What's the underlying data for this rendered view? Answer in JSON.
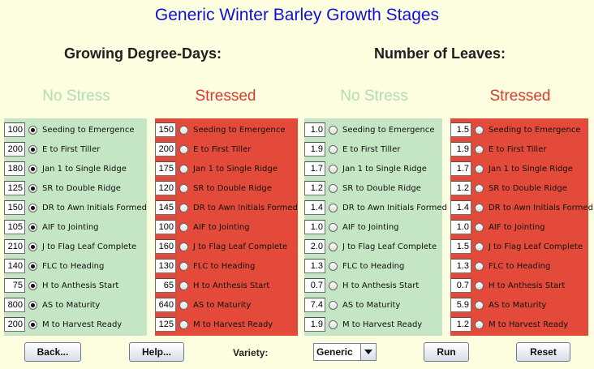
{
  "title": "Generic Winter Barley Growth Stages",
  "sections": {
    "gdd": "Growing Degree-Days:",
    "leaves": "Number of Leaves:"
  },
  "columns": [
    {
      "id": "gdd-no-stress",
      "header": "No Stress",
      "theme": "green",
      "selected": true,
      "values": [
        "100",
        "200",
        "180",
        "125",
        "150",
        "105",
        "210",
        "140",
        "75",
        "800",
        "200"
      ]
    },
    {
      "id": "gdd-stressed",
      "header": "Stressed",
      "theme": "red",
      "selected": false,
      "values": [
        "150",
        "200",
        "175",
        "120",
        "145",
        "100",
        "160",
        "130",
        "65",
        "640",
        "125"
      ]
    },
    {
      "id": "leaves-no-stress",
      "header": "No Stress",
      "theme": "green",
      "selected": false,
      "values": [
        "1.0",
        "1.9",
        "1.7",
        "1.2",
        "1.4",
        "1.0",
        "2.0",
        "1.3",
        "0.7",
        "7.4",
        "1.9"
      ]
    },
    {
      "id": "leaves-stressed",
      "header": "Stressed",
      "theme": "red",
      "selected": false,
      "values": [
        "1.5",
        "1.9",
        "1.7",
        "1.2",
        "1.4",
        "1.0",
        "1.5",
        "1.3",
        "0.7",
        "5.9",
        "1.2"
      ]
    }
  ],
  "stages": [
    "Seeding to Emergence",
    "E to First Tiller",
    "Jan 1 to Single Ridge",
    "SR to Double Ridge",
    "DR to Awn Initials Formed",
    "AIF to Jointing",
    "J to Flag Leaf Complete",
    "FLC to Heading",
    "H to Anthesis Start",
    "AS to Maturity",
    "M to Harvest Ready"
  ],
  "footer": {
    "back": "Back...",
    "help": "Help...",
    "variety_label": "Variety:",
    "variety_value": "Generic",
    "run": "Run",
    "reset": "Reset"
  },
  "colors": {
    "title": "#1010d8",
    "green_panel": "#c5e6c5",
    "red_panel": "#e34a3a",
    "no_stress_header": "#b0dcb8",
    "stressed_header": "#d93a30"
  }
}
